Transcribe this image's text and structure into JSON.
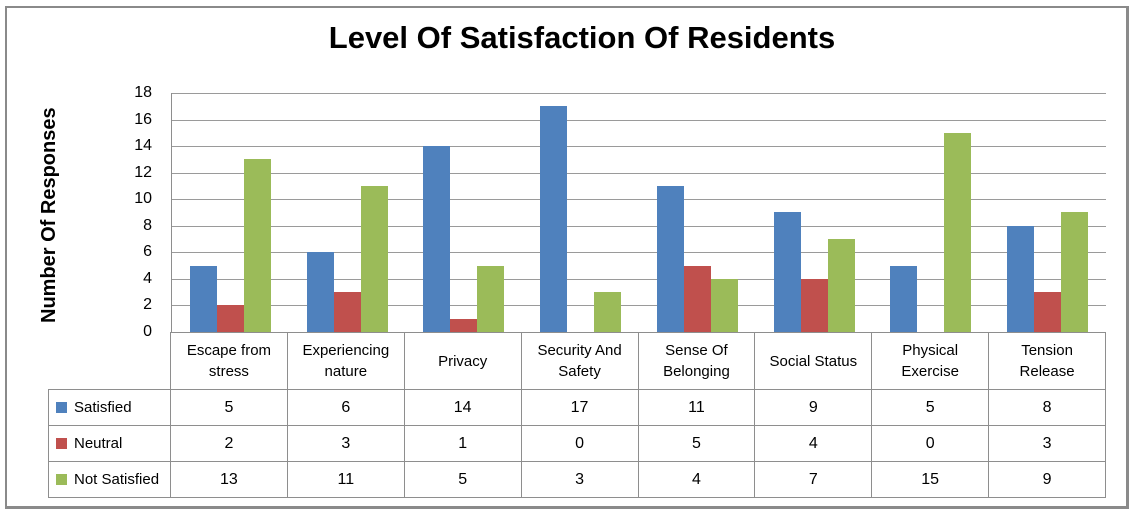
{
  "chart_data": {
    "type": "bar",
    "title": "Level Of Satisfaction Of Residents",
    "xlabel": "",
    "ylabel": "Number Of Responses",
    "categories": [
      "Escape from stress",
      "Experiencing nature",
      "Privacy",
      "Security And Safety",
      "Sense Of Belonging",
      "Social Status",
      "Physical Exercise",
      "Tension Release"
    ],
    "series": [
      {
        "name": "Satisfied",
        "color": "#4F81BD",
        "values": [
          5,
          6,
          14,
          17,
          11,
          9,
          5,
          8
        ]
      },
      {
        "name": "Neutral",
        "color": "#C0504D",
        "values": [
          2,
          3,
          1,
          0,
          5,
          4,
          0,
          3
        ]
      },
      {
        "name": "Not Satisfied",
        "color": "#9BBB59",
        "values": [
          13,
          11,
          5,
          3,
          4,
          7,
          15,
          9
        ]
      }
    ],
    "ylim": [
      0,
      18
    ],
    "yticks": [
      0,
      2,
      4,
      6,
      8,
      10,
      12,
      14,
      16,
      18
    ],
    "grid": true,
    "legend_position": "data-table-left"
  },
  "colors": {
    "satisfied": "#4F81BD",
    "neutral": "#C0504D",
    "not_satisfied": "#9BBB59",
    "grid_line": "#9a9a9a",
    "axis_line": "#8e8e8e",
    "table_border": "#8e8e8e",
    "frame_border": "#8a8a8a",
    "background": "#ffffff",
    "text": "#000000"
  }
}
